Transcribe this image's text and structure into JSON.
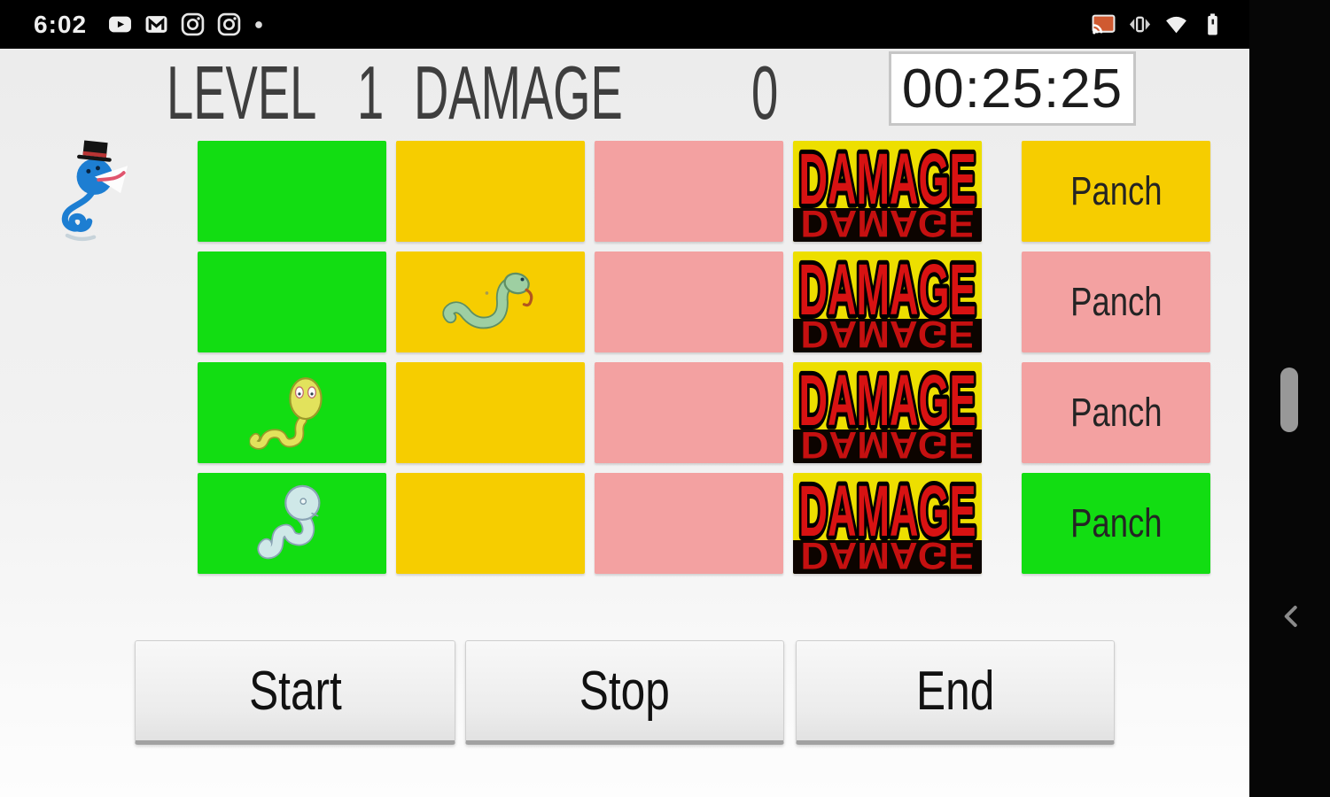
{
  "status_bar": {
    "time": "6:02",
    "left_icons": [
      "youtube-icon",
      "gmail-icon",
      "instagram-icon",
      "instagram-icon",
      "notification-overflow-dot"
    ],
    "right_icons": [
      "cast-icon",
      "vibrate-icon",
      "wifi-icon",
      "battery-icon"
    ]
  },
  "header": {
    "level_label": "LEVEL",
    "level_value": "1",
    "damage_label": "DAMAGE",
    "damage_value": "0",
    "timer_value": "00:25:25"
  },
  "colors": {
    "green": "#12DD12",
    "yellow": "#F6CD00",
    "pink": "#F3A1A1",
    "damage_bg": "#EDDF00",
    "damage_text": "#D81212",
    "damage_reflection": "#C51010",
    "button_text": "#111111",
    "status_bar": "#000000",
    "nav_bar": "#060606"
  },
  "mascot": "blue-snake-top-hat-icon",
  "grid": {
    "rows": [
      {
        "cells": [
          {
            "kind": "color",
            "color": "green"
          },
          {
            "kind": "color",
            "color": "yellow"
          },
          {
            "kind": "color",
            "color": "pink"
          },
          {
            "kind": "damage",
            "label": "DAMAGE"
          },
          {
            "kind": "panch",
            "color": "yellow",
            "label": "Panch"
          }
        ]
      },
      {
        "cells": [
          {
            "kind": "color",
            "color": "green"
          },
          {
            "kind": "color",
            "color": "yellow",
            "sprite": "snake-green"
          },
          {
            "kind": "color",
            "color": "pink"
          },
          {
            "kind": "damage",
            "label": "DAMAGE"
          },
          {
            "kind": "panch",
            "color": "pink",
            "label": "Panch"
          }
        ]
      },
      {
        "cells": [
          {
            "kind": "color",
            "color": "green",
            "sprite": "snake-yellow"
          },
          {
            "kind": "color",
            "color": "yellow"
          },
          {
            "kind": "color",
            "color": "pink"
          },
          {
            "kind": "damage",
            "label": "DAMAGE"
          },
          {
            "kind": "panch",
            "color": "pink",
            "label": "Panch"
          }
        ]
      },
      {
        "cells": [
          {
            "kind": "color",
            "color": "green",
            "sprite": "snake-blue"
          },
          {
            "kind": "color",
            "color": "yellow"
          },
          {
            "kind": "color",
            "color": "pink"
          },
          {
            "kind": "damage",
            "label": "DAMAGE"
          },
          {
            "kind": "panch",
            "color": "green",
            "label": "Panch"
          }
        ]
      }
    ]
  },
  "controls": {
    "start_label": "Start",
    "stop_label": "Stop",
    "end_label": "End"
  },
  "nav_bar": {
    "icons": [
      "scroll-pill",
      "back-chevron-icon"
    ]
  }
}
